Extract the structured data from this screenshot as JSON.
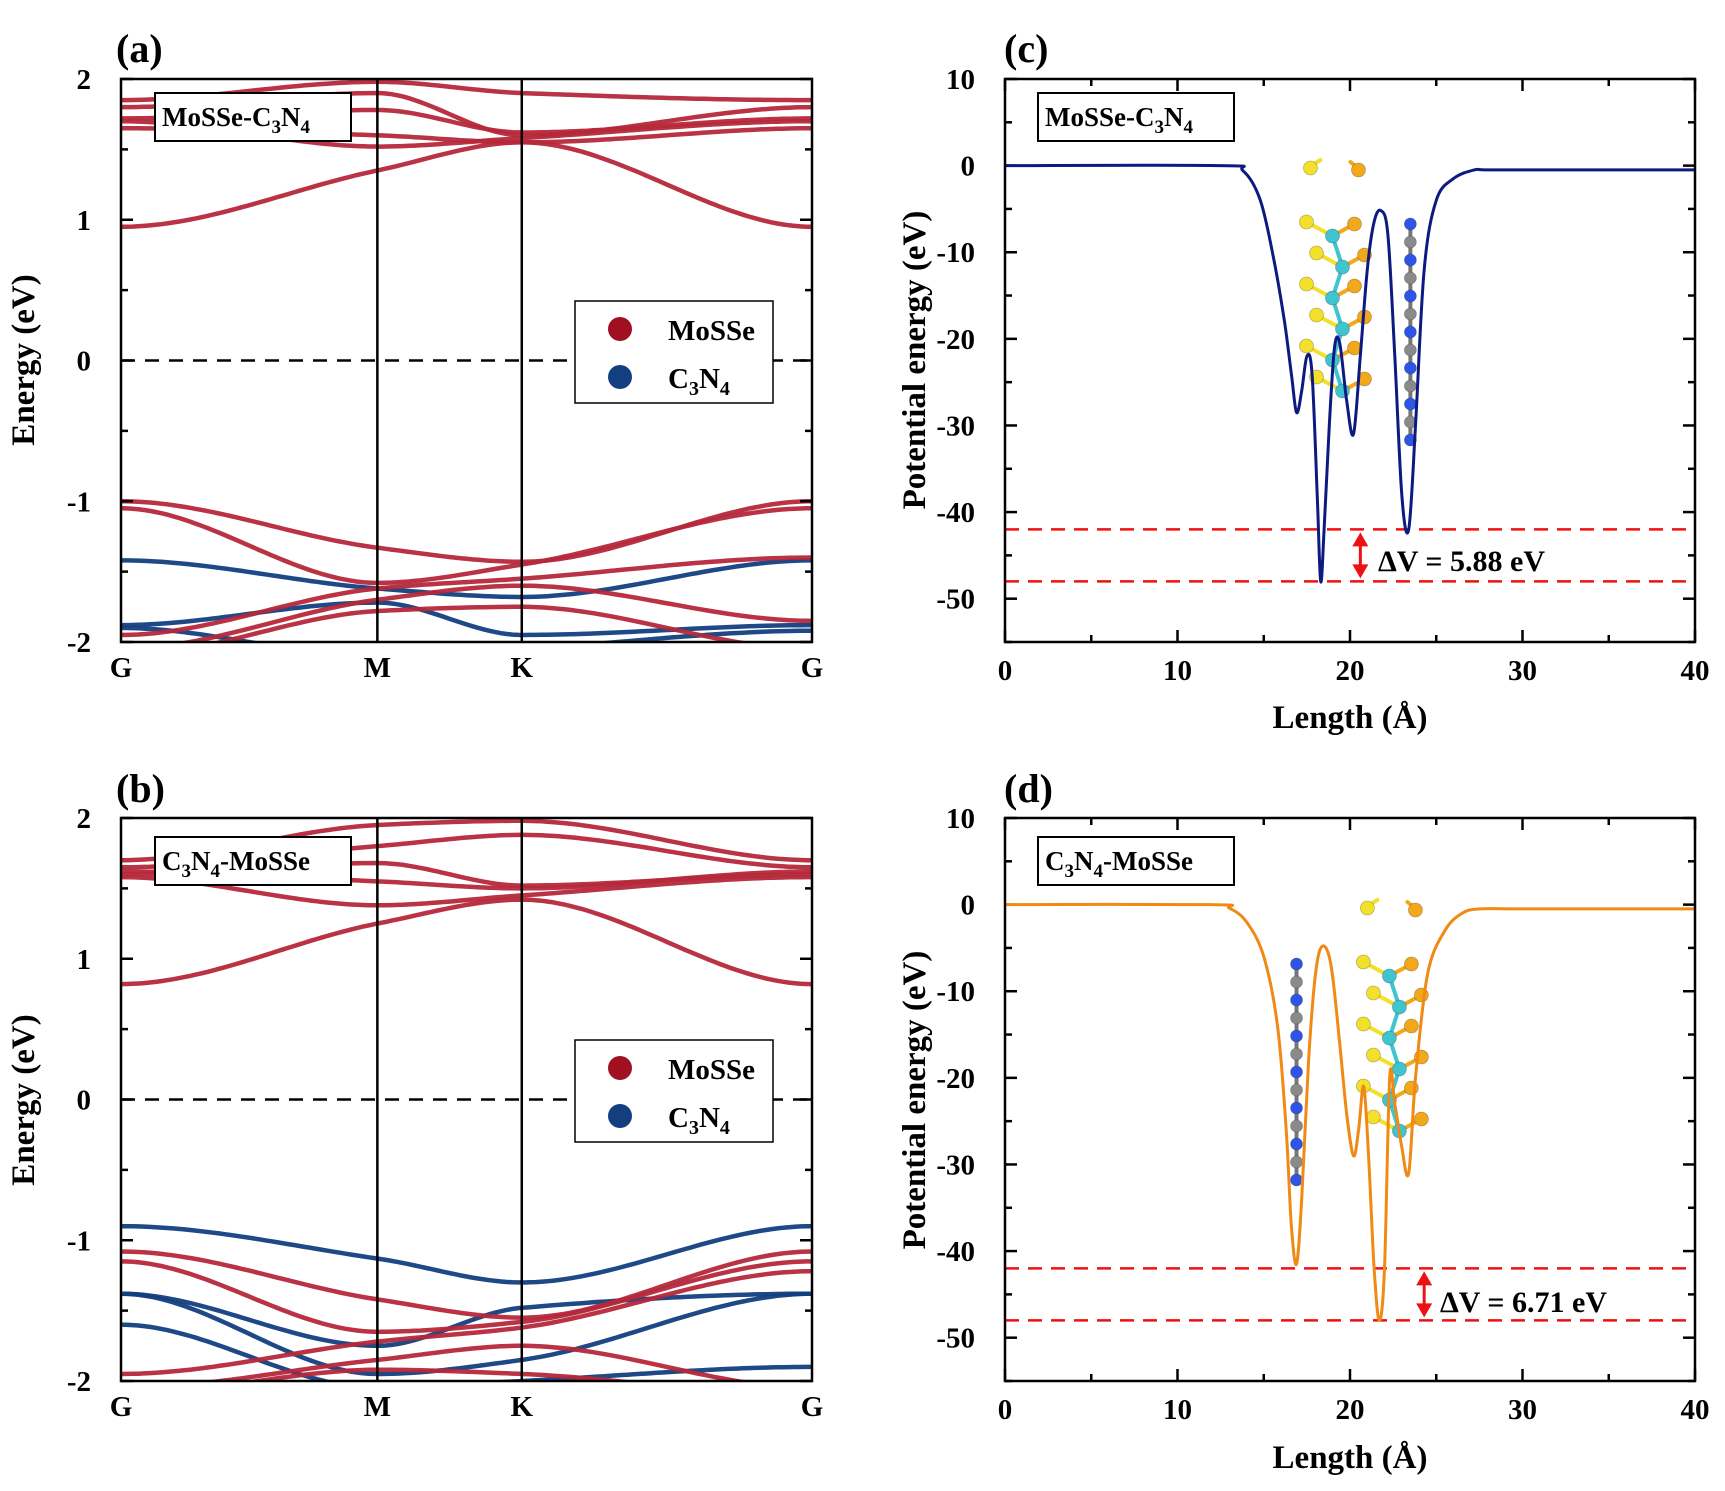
{
  "colors": {
    "mosse": "#b5283a",
    "c3n4": "#133f80",
    "potential_c": "#0d1a80",
    "potential_d": "#f08a14",
    "delta_v": "#ee1111",
    "atom_mo": "#40c4d0",
    "atom_s": "#f2e02a",
    "atom_se": "#f2a81a",
    "atom_c": "#8a8a8a",
    "atom_n": "#2e55e6"
  },
  "chart_data": [
    {
      "panel": "(a)",
      "type": "line",
      "title": "MoSSe-C₃N₄",
      "xlabel": "",
      "ylabel": "Energy (eV)",
      "x_ticks": [
        "G",
        "M",
        "K",
        "G"
      ],
      "y_ticks": [
        "2",
        "1",
        "0",
        "-1",
        "-2"
      ],
      "ylim": [
        -2,
        2
      ],
      "fermi_level": 0,
      "legend": [
        "MoSSe",
        "C₃N₄"
      ],
      "legend_position": "middle-right",
      "series": [
        {
          "name": "MoSSe",
          "role": "conduction band",
          "values": [
            0.95,
            1.35,
            1.55,
            0.95
          ]
        },
        {
          "name": "MoSSe",
          "values": [
            1.7,
            1.52,
            1.58,
            1.7
          ]
        },
        {
          "name": "MoSSe",
          "values": [
            1.65,
            1.6,
            1.55,
            1.65
          ]
        },
        {
          "name": "MoSSe",
          "values": [
            1.72,
            1.78,
            1.62,
            1.72
          ]
        },
        {
          "name": "MoSSe",
          "values": [
            1.8,
            1.9,
            1.6,
            1.8
          ]
        },
        {
          "name": "MoSSe",
          "values": [
            1.85,
            1.98,
            1.9,
            1.85
          ]
        },
        {
          "name": "MoSSe",
          "role": "valence band",
          "values": [
            -1.0,
            -1.33,
            -1.43,
            -1.0
          ]
        },
        {
          "name": "MoSSe",
          "values": [
            -1.05,
            -1.58,
            -1.45,
            -1.05
          ]
        },
        {
          "name": "MoSSe",
          "values": [
            -1.95,
            -1.62,
            -1.55,
            -1.4
          ]
        },
        {
          "name": "MoSSe",
          "values": [
            -2.05,
            -1.7,
            -1.6,
            -1.85
          ]
        },
        {
          "name": "MoSSe",
          "values": [
            -2.1,
            -1.78,
            -1.75,
            -2.05
          ]
        },
        {
          "name": "C₃N₄",
          "values": [
            -1.42,
            -1.62,
            -1.68,
            -1.42
          ]
        },
        {
          "name": "C₃N₄",
          "values": [
            -1.88,
            -1.72,
            -1.95,
            -1.88
          ]
        },
        {
          "name": "C₃N₄",
          "values": [
            -1.9,
            -2.1,
            -2.05,
            -1.92
          ]
        }
      ]
    },
    {
      "panel": "(b)",
      "type": "line",
      "title": "C₃N₄-MoSSe",
      "xlabel": "",
      "ylabel": "Energy (eV)",
      "x_ticks": [
        "G",
        "M",
        "K",
        "G"
      ],
      "y_ticks": [
        "2",
        "1",
        "0",
        "-1",
        "-2"
      ],
      "ylim": [
        -2,
        2
      ],
      "fermi_level": 0,
      "legend": [
        "MoSSe",
        "C₃N₄"
      ],
      "legend_position": "middle-right",
      "series": [
        {
          "name": "MoSSe",
          "role": "conduction band",
          "values": [
            0.82,
            1.25,
            1.42,
            0.82
          ]
        },
        {
          "name": "MoSSe",
          "values": [
            1.58,
            1.38,
            1.45,
            1.58
          ]
        },
        {
          "name": "MoSSe",
          "values": [
            1.62,
            1.55,
            1.5,
            1.62
          ]
        },
        {
          "name": "MoSSe",
          "values": [
            1.6,
            1.68,
            1.52,
            1.6
          ]
        },
        {
          "name": "MoSSe",
          "values": [
            1.65,
            1.8,
            1.88,
            1.65
          ]
        },
        {
          "name": "MoSSe",
          "values": [
            1.7,
            1.95,
            1.98,
            1.7
          ]
        },
        {
          "name": "MoSSe",
          "role": "valence band",
          "values": [
            -1.08,
            -1.42,
            -1.55,
            -1.08
          ]
        },
        {
          "name": "MoSSe",
          "values": [
            -1.15,
            -1.65,
            -1.58,
            -1.15
          ]
        },
        {
          "name": "MoSSe",
          "values": [
            -1.95,
            -1.72,
            -1.62,
            -1.22
          ]
        },
        {
          "name": "MoSSe",
          "values": [
            -2.05,
            -1.85,
            -1.75,
            -2.05
          ]
        },
        {
          "name": "MoSSe",
          "values": [
            -2.1,
            -1.92,
            -1.95,
            -2.1
          ]
        },
        {
          "name": "C₃N₄",
          "role": "valence band",
          "values": [
            -0.9,
            -1.13,
            -1.3,
            -0.9
          ]
        },
        {
          "name": "C₃N₄",
          "values": [
            -1.38,
            -1.75,
            -1.48,
            -1.38
          ]
        },
        {
          "name": "C₃N₄",
          "values": [
            -1.38,
            -1.95,
            -1.85,
            -1.38
          ]
        },
        {
          "name": "C₃N₄",
          "values": [
            -1.6,
            -2.05,
            -2.0,
            -1.9
          ]
        }
      ]
    },
    {
      "panel": "(c)",
      "type": "line",
      "title": "MoSSe-C₃N₄",
      "xlabel": "Length (Å)",
      "ylabel": "Potential energy (eV)",
      "xlim": [
        0,
        40
      ],
      "ylim": [
        -55,
        10
      ],
      "x_ticks": [
        0,
        10,
        20,
        30,
        40
      ],
      "y_ticks": [
        10,
        0,
        -10,
        -20,
        -30,
        -40,
        -50
      ],
      "series": [
        {
          "name": "",
          "x": [
            0,
            12.5,
            13.8,
            14.8,
            15.6,
            16.2,
            16.6,
            16.9,
            17.2,
            17.5,
            17.8,
            18.1,
            18.3,
            18.5,
            18.8,
            19.1,
            19.4,
            19.8,
            20.2,
            20.6,
            21.0,
            21.4,
            21.8,
            22.2,
            22.6,
            23.0,
            23.4,
            23.8,
            24.3,
            25.0,
            26.0,
            27.2,
            28.0,
            32,
            36,
            40
          ],
          "y": [
            0,
            0,
            -0.6,
            -4,
            -11,
            -18,
            -24,
            -28.5,
            -26,
            -22,
            -24,
            -38,
            -48,
            -42,
            -30,
            -21,
            -20.5,
            -27,
            -31,
            -22,
            -12,
            -6.5,
            -5.2,
            -8,
            -22,
            -38,
            -42,
            -30,
            -12,
            -4,
            -1.5,
            -0.5,
            -0.5,
            -0.5,
            -0.5,
            -0.5
          ]
        }
      ],
      "reference_lines": [
        -42,
        -48
      ],
      "annotation": "ΔV = 5.88 eV"
    },
    {
      "panel": "(d)",
      "type": "line",
      "title": "C₃N₄-MoSSe",
      "xlabel": "Length (Å)",
      "ylabel": "Potential energy (eV)",
      "xlim": [
        0,
        40
      ],
      "ylim": [
        -55,
        10
      ],
      "x_ticks": [
        0,
        10,
        20,
        30,
        40
      ],
      "y_ticks": [
        10,
        0,
        -10,
        -20,
        -30,
        -40,
        -50
      ],
      "series": [
        {
          "name": "",
          "x": [
            0,
            12.0,
            13.0,
            14.0,
            15.0,
            15.8,
            16.3,
            16.6,
            16.9,
            17.2,
            17.6,
            18.0,
            18.4,
            18.9,
            19.4,
            19.8,
            20.2,
            20.5,
            20.8,
            21.1,
            21.4,
            21.7,
            22.0,
            22.3,
            22.6,
            23.0,
            23.4,
            23.8,
            24.5,
            25.5,
            26.5,
            27.5,
            30,
            35,
            40
          ],
          "y": [
            0,
            0,
            -0.4,
            -2,
            -6,
            -14,
            -26,
            -37,
            -41.5,
            -34,
            -18,
            -8,
            -4.8,
            -7,
            -16,
            -24,
            -29,
            -26,
            -21,
            -30,
            -42,
            -48,
            -42,
            -20,
            -23,
            -28,
            -31,
            -20,
            -8,
            -3,
            -1,
            -0.5,
            -0.5,
            -0.5,
            -0.5
          ]
        }
      ],
      "reference_lines": [
        -42,
        -48
      ],
      "annotation": "ΔV = 6.71 eV"
    }
  ],
  "panels": [
    {
      "label": "(a)",
      "title_parts": [
        "MoSSe-C",
        "3",
        "N",
        "4",
        ""
      ],
      "legend": [
        {
          "parts": [
            "MoSSe"
          ]
        },
        {
          "parts": [
            "C",
            "3",
            "N",
            "4"
          ]
        }
      ]
    },
    {
      "label": "(b)",
      "title_parts": [
        "C",
        "3",
        "N",
        "4",
        "-MoSSe"
      ],
      "legend": [
        {
          "parts": [
            "MoSSe"
          ]
        },
        {
          "parts": [
            "C",
            "3",
            "N",
            "4"
          ]
        }
      ]
    },
    {
      "label": "(c)",
      "title_parts": [
        "MoSSe-C",
        "3",
        "N",
        "4",
        ""
      ]
    },
    {
      "label": "(d)",
      "title_parts": [
        "C",
        "3",
        "N",
        "4",
        "-MoSSe"
      ]
    }
  ]
}
